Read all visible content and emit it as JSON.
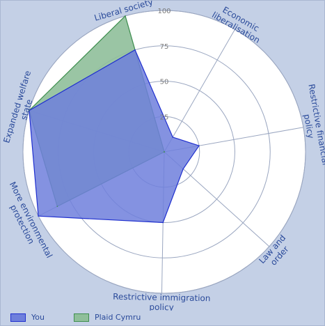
{
  "chart_data": {
    "type": "radar",
    "axes": [
      "Economic liberalisation",
      "Restrictive financial policy",
      "Law and order",
      "Restrictive immigration policy",
      "More environmental protection",
      "Expanded welfare state",
      "Liberal society"
    ],
    "rlim": [
      0,
      100
    ],
    "ticks": [
      25,
      50,
      75,
      100
    ],
    "grid": true,
    "legend_position": "bottom-left",
    "series": [
      {
        "name": "You",
        "color": "#6e7fdc",
        "values": [
          12,
          25,
          18,
          50,
          100,
          100,
          75
        ]
      },
      {
        "name": "Plaid Cymru",
        "color": "#8fbf9a",
        "values": [
          0,
          0,
          0,
          0,
          85,
          100,
          100
        ]
      }
    ]
  }
}
